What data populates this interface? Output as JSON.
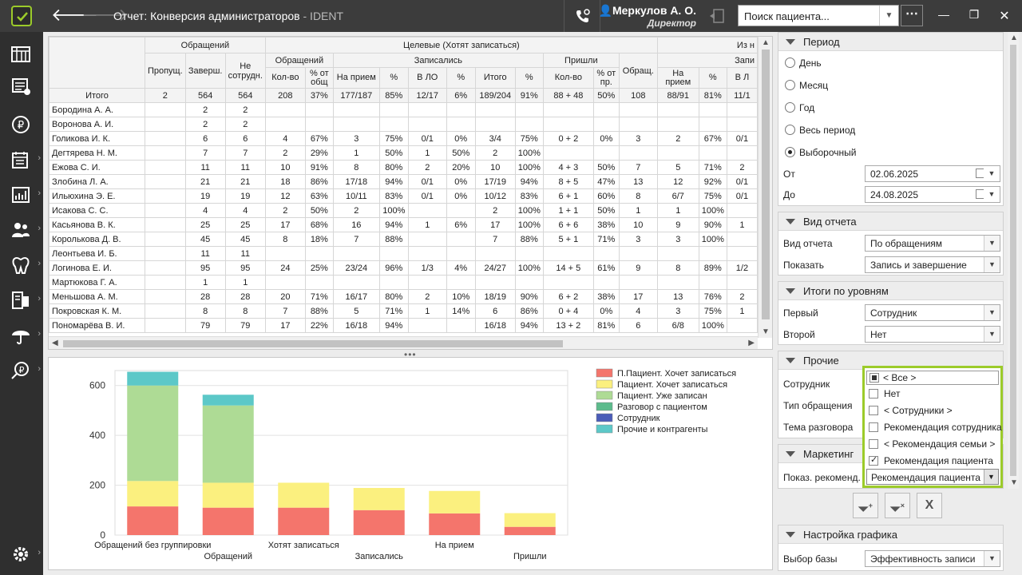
{
  "window": {
    "title": "Отчет: Конверсия администраторов",
    "app": " - IDENT"
  },
  "user": {
    "name": "Меркулов А. О.",
    "role": "Директор"
  },
  "search": {
    "placeholder": "Поиск пациента..."
  },
  "icons": {
    "logo": "check-logo-icon",
    "back": "arrow-left-icon",
    "forward": "arrow-right-icon",
    "phone": "phone-settings-icon",
    "more": "more-icon",
    "minimize": "minimize-icon",
    "maximize": "restore-icon",
    "close": "close-icon"
  },
  "sidebar": [
    {
      "icon": "schedule-icon",
      "caret": false
    },
    {
      "icon": "records-icon",
      "caret": false
    },
    {
      "icon": "ruble-icon",
      "caret": false
    },
    {
      "icon": "calendar-report-icon",
      "caret": true
    },
    {
      "icon": "chart-icon",
      "caret": true
    },
    {
      "icon": "users-icon",
      "caret": true
    },
    {
      "icon": "tooth-icon",
      "caret": true
    },
    {
      "icon": "devices-icon",
      "caret": true
    },
    {
      "icon": "umbrella-icon",
      "caret": true
    },
    {
      "icon": "ruble-loan-icon",
      "caret": true
    },
    {
      "icon": "gear-icon",
      "caret": true
    }
  ],
  "table": {
    "groups": [
      {
        "label": "Обращений",
        "span": 3
      },
      {
        "label": "Целевые (Хотят записаться)",
        "span": 11
      },
      {
        "label": "Из н",
        "span": 4
      }
    ],
    "subgroups": [
      {
        "label": "Обращений",
        "span": 2
      },
      {
        "label": "Записались",
        "span": 6
      },
      {
        "label": "Пришли",
        "span": 2
      },
      {
        "label": "",
        "span": 1
      },
      {
        "label": "Запи",
        "span": 3
      }
    ],
    "top_cols": [
      "Пропущ.",
      "Заверш.",
      "Не сотрудн."
    ],
    "mid_col": "Обращ.",
    "leaf_cols": [
      "Кол-во",
      "% от общ",
      "На прием",
      "%",
      "В ЛО",
      "%",
      "Итого",
      "%",
      "Кол-во",
      "% от пр.",
      "На прием",
      "%",
      "В Л"
    ],
    "total": [
      "Итого",
      "2",
      "564",
      "564",
      "208",
      "37%",
      "177/187",
      "85%",
      "12/17",
      "6%",
      "189/204",
      "91%",
      "88 + 48",
      "50%",
      "108",
      "88/91",
      "81%",
      "11/1"
    ],
    "rows": [
      [
        "Бородина А. А.",
        "",
        "2",
        "2",
        "",
        "",
        "",
        "",
        "",
        "",
        "",
        "",
        "",
        "",
        "",
        "",
        "",
        ""
      ],
      [
        "Воронова А. И.",
        "",
        "2",
        "2",
        "",
        "",
        "",
        "",
        "",
        "",
        "",
        "",
        "",
        "",
        "",
        "",
        "",
        ""
      ],
      [
        "Голикова И. К.",
        "",
        "6",
        "6",
        "4",
        "67%",
        "3",
        "75%",
        "0/1",
        "0%",
        "3/4",
        "75%",
        "0 + 2",
        "0%",
        "3",
        "2",
        "67%",
        "0/1"
      ],
      [
        "Дегтярева Н. М.",
        "",
        "7",
        "7",
        "2",
        "29%",
        "1",
        "50%",
        "1",
        "50%",
        "2",
        "100%",
        "",
        "",
        "",
        "",
        "",
        ""
      ],
      [
        "Ежова С. И.",
        "",
        "11",
        "11",
        "10",
        "91%",
        "8",
        "80%",
        "2",
        "20%",
        "10",
        "100%",
        "4 + 3",
        "50%",
        "7",
        "5",
        "71%",
        "2"
      ],
      [
        "Злобина Л. А.",
        "",
        "21",
        "21",
        "18",
        "86%",
        "17/18",
        "94%",
        "0/1",
        "0%",
        "17/19",
        "94%",
        "8 + 5",
        "47%",
        "13",
        "12",
        "92%",
        "0/1"
      ],
      [
        "Ильюхина Э. Е.",
        "",
        "19",
        "19",
        "12",
        "63%",
        "10/11",
        "83%",
        "0/1",
        "0%",
        "10/12",
        "83%",
        "6 + 1",
        "60%",
        "8",
        "6/7",
        "75%",
        "0/1"
      ],
      [
        "Исакова С. С.",
        "",
        "4",
        "4",
        "2",
        "50%",
        "2",
        "100%",
        "",
        "",
        "2",
        "100%",
        "1 + 1",
        "50%",
        "1",
        "1",
        "100%",
        ""
      ],
      [
        "Касьянова В. К.",
        "",
        "25",
        "25",
        "17",
        "68%",
        "16",
        "94%",
        "1",
        "6%",
        "17",
        "100%",
        "6 + 6",
        "38%",
        "10",
        "9",
        "90%",
        "1"
      ],
      [
        "Королькова Д. В.",
        "",
        "45",
        "45",
        "8",
        "18%",
        "7",
        "88%",
        "",
        "",
        "7",
        "88%",
        "5 + 1",
        "71%",
        "3",
        "3",
        "100%",
        ""
      ],
      [
        "Леонтьева И. Б.",
        "",
        "11",
        "11",
        "",
        "",
        "",
        "",
        "",
        "",
        "",
        "",
        "",
        "",
        "",
        "",
        "",
        ""
      ],
      [
        "Логинова Е. И.",
        "",
        "95",
        "95",
        "24",
        "25%",
        "23/24",
        "96%",
        "1/3",
        "4%",
        "24/27",
        "100%",
        "14 + 5",
        "61%",
        "9",
        "8",
        "89%",
        "1/2"
      ],
      [
        "Мартюкова Г. А.",
        "",
        "1",
        "1",
        "",
        "",
        "",
        "",
        "",
        "",
        "",
        "",
        "",
        "",
        "",
        "",
        "",
        ""
      ],
      [
        "Меньшова А. М.",
        "",
        "28",
        "28",
        "20",
        "71%",
        "16/17",
        "80%",
        "2",
        "10%",
        "18/19",
        "90%",
        "6 + 2",
        "38%",
        "17",
        "13",
        "76%",
        "2"
      ],
      [
        "Покровская К. М.",
        "",
        "8",
        "8",
        "7",
        "88%",
        "5",
        "71%",
        "1",
        "14%",
        "6",
        "86%",
        "0 + 4",
        "0%",
        "4",
        "3",
        "75%",
        "1"
      ],
      [
        "Пономарёва В. И.",
        "",
        "79",
        "79",
        "17",
        "22%",
        "16/18",
        "94%",
        "",
        "",
        "16/18",
        "94%",
        "13 + 2",
        "81%",
        "6",
        "6/8",
        "100%",
        ""
      ]
    ]
  },
  "chart_data": {
    "type": "bar",
    "stacked": true,
    "categories": [
      "Обращений без группировки",
      "Обращений",
      "Хотят записаться",
      "Записались",
      "На прием",
      "Пришли"
    ],
    "series": [
      {
        "name": "П.Пациент. Хочет записаться",
        "color": "#f4756c",
        "values": [
          115,
          110,
          110,
          100,
          87,
          33
        ]
      },
      {
        "name": "Пациент. Хочет записаться",
        "color": "#fbf07f",
        "values": [
          102,
          100,
          100,
          89,
          90,
          55
        ]
      },
      {
        "name": "Пациент. Уже записан",
        "color": "#aedb95",
        "values": [
          383,
          310,
          0,
          0,
          0,
          0
        ]
      },
      {
        "name": "Разговор с пациентом",
        "color": "#5cbb8c",
        "values": [
          0,
          0,
          0,
          0,
          0,
          0
        ]
      },
      {
        "name": "Сотрудник",
        "color": "#4a5cb8",
        "values": [
          0,
          0,
          0,
          0,
          0,
          0
        ]
      },
      {
        "name": "Прочие и контрагенты",
        "color": "#5cc8c8",
        "values": [
          55,
          43,
          0,
          0,
          0,
          0
        ]
      }
    ],
    "yticks": [
      "0",
      "200",
      "400",
      "600"
    ],
    "ylim": [
      0,
      660
    ],
    "grid": true,
    "legend": "top-right"
  },
  "panel": {
    "period": {
      "title": "Период",
      "options": [
        {
          "label": "День",
          "selected": false
        },
        {
          "label": "Месяц",
          "selected": false
        },
        {
          "label": "Год",
          "selected": false
        },
        {
          "label": "Весь период",
          "selected": false
        },
        {
          "label": "Выборочный",
          "selected": true
        }
      ],
      "from_label": "От",
      "from_value": "02.06.2025",
      "to_label": "До",
      "to_value": "24.08.2025"
    },
    "report_view": {
      "title": "Вид отчета",
      "view_label": "Вид отчета",
      "view_value": "По обращениям",
      "show_label": "Показать",
      "show_value": "Запись и завершение"
    },
    "levels": {
      "title": "Итоги по уровням",
      "first_label": "Первый",
      "first_value": "Сотрудник",
      "second_label": "Второй",
      "second_value": "Нет"
    },
    "other": {
      "title": "Прочие",
      "employee_label": "Сотрудник",
      "type_label": "Тип обращения",
      "topic_label": "Тема разговора"
    },
    "marketing": {
      "title": "Маркетинг",
      "show_label": "Показ. рекоменд."
    },
    "chart_settings": {
      "title": "Настройка графика",
      "base_label": "Выбор базы",
      "base_value": "Эффективность записи"
    }
  },
  "popup": {
    "options": [
      {
        "label": "< Все >",
        "state": "part"
      },
      {
        "label": "Нет",
        "state": "none"
      },
      {
        "label": "< Сотрудники >",
        "state": "none"
      },
      {
        "label": "Рекомендация сотрудника",
        "state": "none"
      },
      {
        "label": "< Рекомендация семьи >",
        "state": "none"
      },
      {
        "label": "Рекомендация пациента",
        "state": "chk"
      }
    ],
    "selected": "Рекомендация пациента"
  },
  "filter_buttons": [
    {
      "icon": "filter-add-icon",
      "glyph": "⧩"
    },
    {
      "icon": "filter-clear-icon",
      "glyph": "⧩"
    },
    {
      "icon": "excel-icon",
      "glyph": "X"
    }
  ]
}
